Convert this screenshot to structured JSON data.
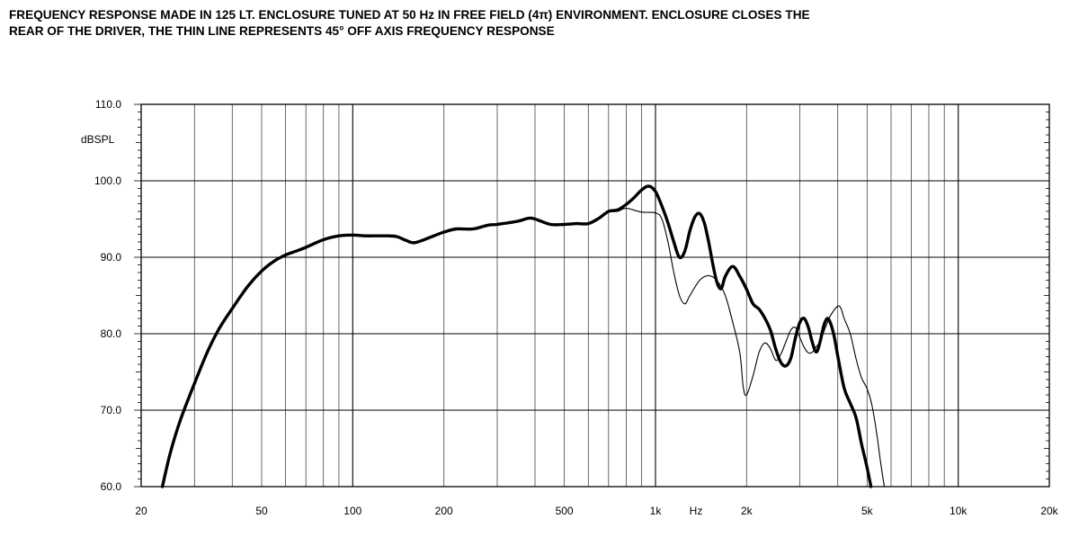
{
  "title_lines": [
    "FREQUENCY RESPONSE MADE IN 125 LT. ENCLOSURE TUNED AT 50 Hz IN FREE FIELD (4π) ENVIRONMENT. ENCLOSURE CLOSES THE",
    "REAR OF THE DRIVER, THE THIN LINE REPRESENTS 45° OFF AXIS FREQUENCY RESPONSE"
  ],
  "chart_data": {
    "type": "line",
    "xscale": "log",
    "xlim": [
      20,
      20000
    ],
    "ylim": [
      60,
      110
    ],
    "xlabel": "Hz",
    "ylabel": "dBSPL",
    "grid": true,
    "legend": "none",
    "x_tick_labels": [
      {
        "value": 20,
        "label": "20"
      },
      {
        "value": 50,
        "label": "50"
      },
      {
        "value": 100,
        "label": "100"
      },
      {
        "value": 200,
        "label": "200"
      },
      {
        "value": 500,
        "label": "500"
      },
      {
        "value": 1000,
        "label": "1k"
      },
      {
        "value": 2000,
        "label": "2k"
      },
      {
        "value": 5000,
        "label": "5k"
      },
      {
        "value": 10000,
        "label": "10k"
      },
      {
        "value": 20000,
        "label": "20k"
      }
    ],
    "y_tick_labels": [
      {
        "value": 110,
        "label": "110.0"
      },
      {
        "value": 100,
        "label": "100.0"
      },
      {
        "value": 90,
        "label": "90.0"
      },
      {
        "value": 80,
        "label": "80.0"
      },
      {
        "value": 70,
        "label": "70.0"
      },
      {
        "value": 60,
        "label": "60.0"
      }
    ],
    "series": [
      {
        "style": "thick",
        "points": [
          [
            23.5,
            60.0
          ],
          [
            25,
            64.5
          ],
          [
            27,
            68.8
          ],
          [
            30,
            73.5
          ],
          [
            33,
            77.5
          ],
          [
            36,
            80.5
          ],
          [
            40,
            83.3
          ],
          [
            45,
            86.2
          ],
          [
            50,
            88.2
          ],
          [
            55,
            89.5
          ],
          [
            60,
            90.3
          ],
          [
            65,
            90.8
          ],
          [
            70,
            91.3
          ],
          [
            80,
            92.3
          ],
          [
            90,
            92.8
          ],
          [
            100,
            92.9
          ],
          [
            110,
            92.8
          ],
          [
            120,
            92.8
          ],
          [
            130,
            92.8
          ],
          [
            140,
            92.7
          ],
          [
            150,
            92.2
          ],
          [
            160,
            91.9
          ],
          [
            180,
            92.6
          ],
          [
            200,
            93.3
          ],
          [
            220,
            93.7
          ],
          [
            250,
            93.7
          ],
          [
            280,
            94.2
          ],
          [
            300,
            94.3
          ],
          [
            350,
            94.7
          ],
          [
            380,
            95.1
          ],
          [
            400,
            95.0
          ],
          [
            450,
            94.3
          ],
          [
            500,
            94.3
          ],
          [
            550,
            94.4
          ],
          [
            600,
            94.4
          ],
          [
            650,
            95.1
          ],
          [
            700,
            96.0
          ],
          [
            750,
            96.2
          ],
          [
            800,
            96.9
          ],
          [
            850,
            97.8
          ],
          [
            900,
            98.8
          ],
          [
            950,
            99.3
          ],
          [
            1000,
            98.6
          ],
          [
            1050,
            96.7
          ],
          [
            1100,
            94.5
          ],
          [
            1150,
            92.0
          ],
          [
            1200,
            90.0
          ],
          [
            1250,
            90.8
          ],
          [
            1300,
            93.5
          ],
          [
            1350,
            95.3
          ],
          [
            1400,
            95.7
          ],
          [
            1450,
            94.5
          ],
          [
            1500,
            91.9
          ],
          [
            1550,
            88.9
          ],
          [
            1600,
            86.6
          ],
          [
            1650,
            85.9
          ],
          [
            1700,
            87.5
          ],
          [
            1800,
            88.8
          ],
          [
            1900,
            87.5
          ],
          [
            2000,
            85.8
          ],
          [
            2100,
            83.9
          ],
          [
            2200,
            83.2
          ],
          [
            2300,
            82.0
          ],
          [
            2400,
            80.4
          ],
          [
            2500,
            77.9
          ],
          [
            2600,
            76.2
          ],
          [
            2700,
            75.8
          ],
          [
            2800,
            76.8
          ],
          [
            2900,
            79.5
          ],
          [
            3000,
            81.5
          ],
          [
            3100,
            82.0
          ],
          [
            3200,
            80.8
          ],
          [
            3300,
            78.8
          ],
          [
            3400,
            77.6
          ],
          [
            3500,
            79.0
          ],
          [
            3600,
            81.1
          ],
          [
            3700,
            82.0
          ],
          [
            3800,
            81.2
          ],
          [
            3900,
            79.5
          ],
          [
            4000,
            77.1
          ],
          [
            4200,
            72.9
          ],
          [
            4400,
            70.9
          ],
          [
            4600,
            69.0
          ],
          [
            4800,
            65.5
          ],
          [
            5000,
            62.5
          ],
          [
            5150,
            60.0
          ]
        ]
      },
      {
        "style": "thin",
        "points": [
          [
            650,
            95.1
          ],
          [
            700,
            95.9
          ],
          [
            750,
            96.0
          ],
          [
            800,
            96.4
          ],
          [
            900,
            95.9
          ],
          [
            1000,
            95.8
          ],
          [
            1050,
            95.0
          ],
          [
            1100,
            92.0
          ],
          [
            1150,
            88.0
          ],
          [
            1200,
            85.0
          ],
          [
            1250,
            83.9
          ],
          [
            1300,
            85.0
          ],
          [
            1400,
            87.0
          ],
          [
            1500,
            87.6
          ],
          [
            1600,
            86.9
          ],
          [
            1700,
            85.0
          ],
          [
            1800,
            81.5
          ],
          [
            1900,
            77.5
          ],
          [
            1950,
            73.0
          ],
          [
            2000,
            72.0
          ],
          [
            2100,
            74.5
          ],
          [
            2200,
            77.6
          ],
          [
            2300,
            78.8
          ],
          [
            2400,
            78.0
          ],
          [
            2500,
            76.5
          ],
          [
            2600,
            77.4
          ],
          [
            2700,
            79.0
          ],
          [
            2800,
            80.5
          ],
          [
            2900,
            80.8
          ],
          [
            3000,
            79.5
          ],
          [
            3100,
            78.2
          ],
          [
            3200,
            77.5
          ],
          [
            3300,
            77.6
          ],
          [
            3400,
            78.3
          ],
          [
            3500,
            79.0
          ],
          [
            3600,
            80.3
          ],
          [
            3700,
            81.5
          ],
          [
            3800,
            82.5
          ],
          [
            4000,
            83.6
          ],
          [
            4100,
            83.3
          ],
          [
            4200,
            82.0
          ],
          [
            4400,
            80.0
          ],
          [
            4600,
            76.7
          ],
          [
            4800,
            74.2
          ],
          [
            5000,
            72.8
          ],
          [
            5200,
            70.5
          ],
          [
            5400,
            66.5
          ],
          [
            5550,
            63.0
          ],
          [
            5700,
            60.0
          ]
        ]
      }
    ]
  }
}
